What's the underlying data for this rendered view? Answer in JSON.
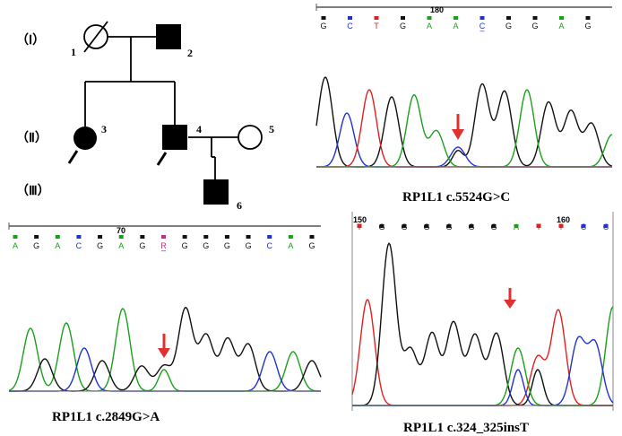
{
  "pedigree": {
    "generations": [
      "（Ⅰ）",
      "（Ⅱ）",
      "（Ⅲ）"
    ],
    "individuals": [
      {
        "id": "1",
        "sex": "female",
        "affected": false,
        "deceased": true
      },
      {
        "id": "2",
        "sex": "male",
        "affected": true,
        "deceased": false
      },
      {
        "id": "3",
        "sex": "female",
        "affected": true,
        "deceased": false,
        "proband_arrow": true
      },
      {
        "id": "4",
        "sex": "male",
        "affected": true,
        "deceased": false,
        "proband_arrow": true
      },
      {
        "id": "5",
        "sex": "female",
        "affected": false,
        "deceased": false
      },
      {
        "id": "6",
        "sex": "male",
        "affected": true,
        "deceased": false
      }
    ]
  },
  "colors": {
    "A": "#1aa01a",
    "C": "#2233cc",
    "G": "#111111",
    "T": "#e02020",
    "arrow": "#e03030"
  },
  "panels": [
    {
      "key": "p1",
      "caption": "RP1L1 c.5524G>C",
      "position_label": "180",
      "bases": [
        "G",
        "C",
        "T",
        "G",
        "A",
        "A",
        "C",
        "G",
        "G",
        "A",
        "G"
      ],
      "mutant_index": 6,
      "arrow_index": 6
    },
    {
      "key": "p2",
      "caption": "RP1L1 c.2849G>A",
      "position_label": "70",
      "bases": [
        "A",
        "G",
        "A",
        "C",
        "G",
        "A",
        "G",
        "R",
        "G",
        "G",
        "G",
        "G",
        "C",
        "A",
        "G"
      ],
      "mutant_index": 7,
      "arrow_index": 7
    },
    {
      "key": "p3",
      "caption": "RP1L1 c.324_325insT",
      "position_label_left": "150",
      "position_label_right": "160",
      "bases": [
        "T",
        "G",
        "G",
        "G",
        "G",
        "G",
        "G",
        "A",
        "T",
        "T",
        "C",
        "C"
      ],
      "arrow_index": 6
    }
  ]
}
